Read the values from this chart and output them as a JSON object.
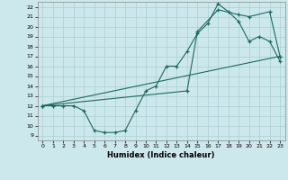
{
  "title": "",
  "xlabel": "Humidex (Indice chaleur)",
  "bg_color": "#cce8ec",
  "grid_color": "#aacfd4",
  "line_color": "#1a6b5e",
  "xlim": [
    -0.5,
    23.5
  ],
  "ylim": [
    8.5,
    22.5
  ],
  "xticks": [
    0,
    1,
    2,
    3,
    4,
    5,
    6,
    7,
    8,
    9,
    10,
    11,
    12,
    13,
    14,
    15,
    16,
    17,
    18,
    19,
    20,
    21,
    22,
    23
  ],
  "yticks": [
    9,
    10,
    11,
    12,
    13,
    14,
    15,
    16,
    17,
    18,
    19,
    20,
    21,
    22
  ],
  "line1_x": [
    0,
    1,
    2,
    3,
    4,
    5,
    6,
    7,
    8,
    9,
    10,
    11,
    12,
    13,
    14,
    15,
    16,
    17,
    18,
    19,
    20,
    21,
    22,
    23
  ],
  "line1_y": [
    12,
    12,
    12,
    12,
    11.5,
    9.5,
    9.3,
    9.3,
    9.5,
    11.5,
    13.5,
    14.0,
    16.0,
    16.0,
    17.5,
    19.3,
    20.3,
    22.3,
    21.5,
    20.5,
    18.5,
    19.0,
    18.5,
    16.5
  ],
  "line2_x": [
    0,
    14,
    15,
    17,
    19,
    20,
    22,
    23
  ],
  "line2_y": [
    12,
    13.5,
    19.5,
    21.7,
    21.2,
    21.0,
    21.5,
    17.0
  ],
  "line3_x": [
    0,
    23
  ],
  "line3_y": [
    12,
    17
  ]
}
